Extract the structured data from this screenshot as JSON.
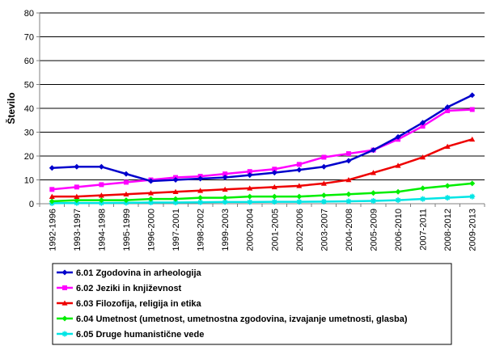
{
  "chart_data": {
    "type": "line",
    "title": "",
    "xlabel": "",
    "ylabel": "Število",
    "ylim": [
      0,
      80
    ],
    "yticks": [
      0,
      10,
      20,
      30,
      40,
      50,
      60,
      70,
      80
    ],
    "grid": true,
    "legend_position": "bottom",
    "categories": [
      "1992-1996",
      "1993-1997",
      "1994-1998",
      "1995-1999",
      "1996-2000",
      "1997-2001",
      "1998-2002",
      "1999-2003",
      "2000-2004",
      "2001-2005",
      "2002-2006",
      "2003-2007",
      "2004-2008",
      "2005-2009",
      "2006-2010",
      "2007-2011",
      "2008-2012",
      "2009-2013"
    ],
    "series": [
      {
        "name": "6.01 Zgodovina in arheologija",
        "color": "#0000CC",
        "marker": "diamond",
        "values": [
          15,
          15.5,
          15.5,
          12.5,
          9.5,
          10,
          10.5,
          11,
          12,
          13,
          14.2,
          15.5,
          18,
          22.5,
          28,
          34,
          40.5,
          45.5
        ]
      },
      {
        "name": "6.02 Jeziki in književnost",
        "color": "#FF00FF",
        "marker": "square",
        "values": [
          6,
          7,
          8,
          9,
          10,
          11,
          11.5,
          12.5,
          13.5,
          14.5,
          16.5,
          19.5,
          21,
          22.5,
          27,
          32.5,
          39,
          39.5
        ]
      },
      {
        "name": "6.03 Filozofija, religija in etika",
        "color": "#EE0000",
        "marker": "triangle",
        "values": [
          3,
          3,
          3.5,
          4,
          4.5,
          5,
          5.5,
          6,
          6.5,
          7,
          7.5,
          8.5,
          10,
          13,
          16,
          19.5,
          24,
          27
        ]
      },
      {
        "name": "6.04 Umetnost (umetnost, umetnostna zgodovina, izvajanje umetnosti, glasba)",
        "color": "#00EE00",
        "marker": "diamond",
        "values": [
          1,
          1.5,
          1.5,
          1.5,
          2,
          2,
          2.5,
          2.5,
          3,
          3,
          3,
          3.5,
          4,
          4.5,
          5,
          6.5,
          7.5,
          8.5
        ]
      },
      {
        "name": "6.05 Druge humanistične vede",
        "color": "#00E5E5",
        "marker": "star",
        "values": [
          0.2,
          0.3,
          0.3,
          0.4,
          0.5,
          0.5,
          0.6,
          0.7,
          0.7,
          0.8,
          0.8,
          0.9,
          1,
          1.2,
          1.5,
          2,
          2.5,
          3
        ]
      }
    ]
  }
}
